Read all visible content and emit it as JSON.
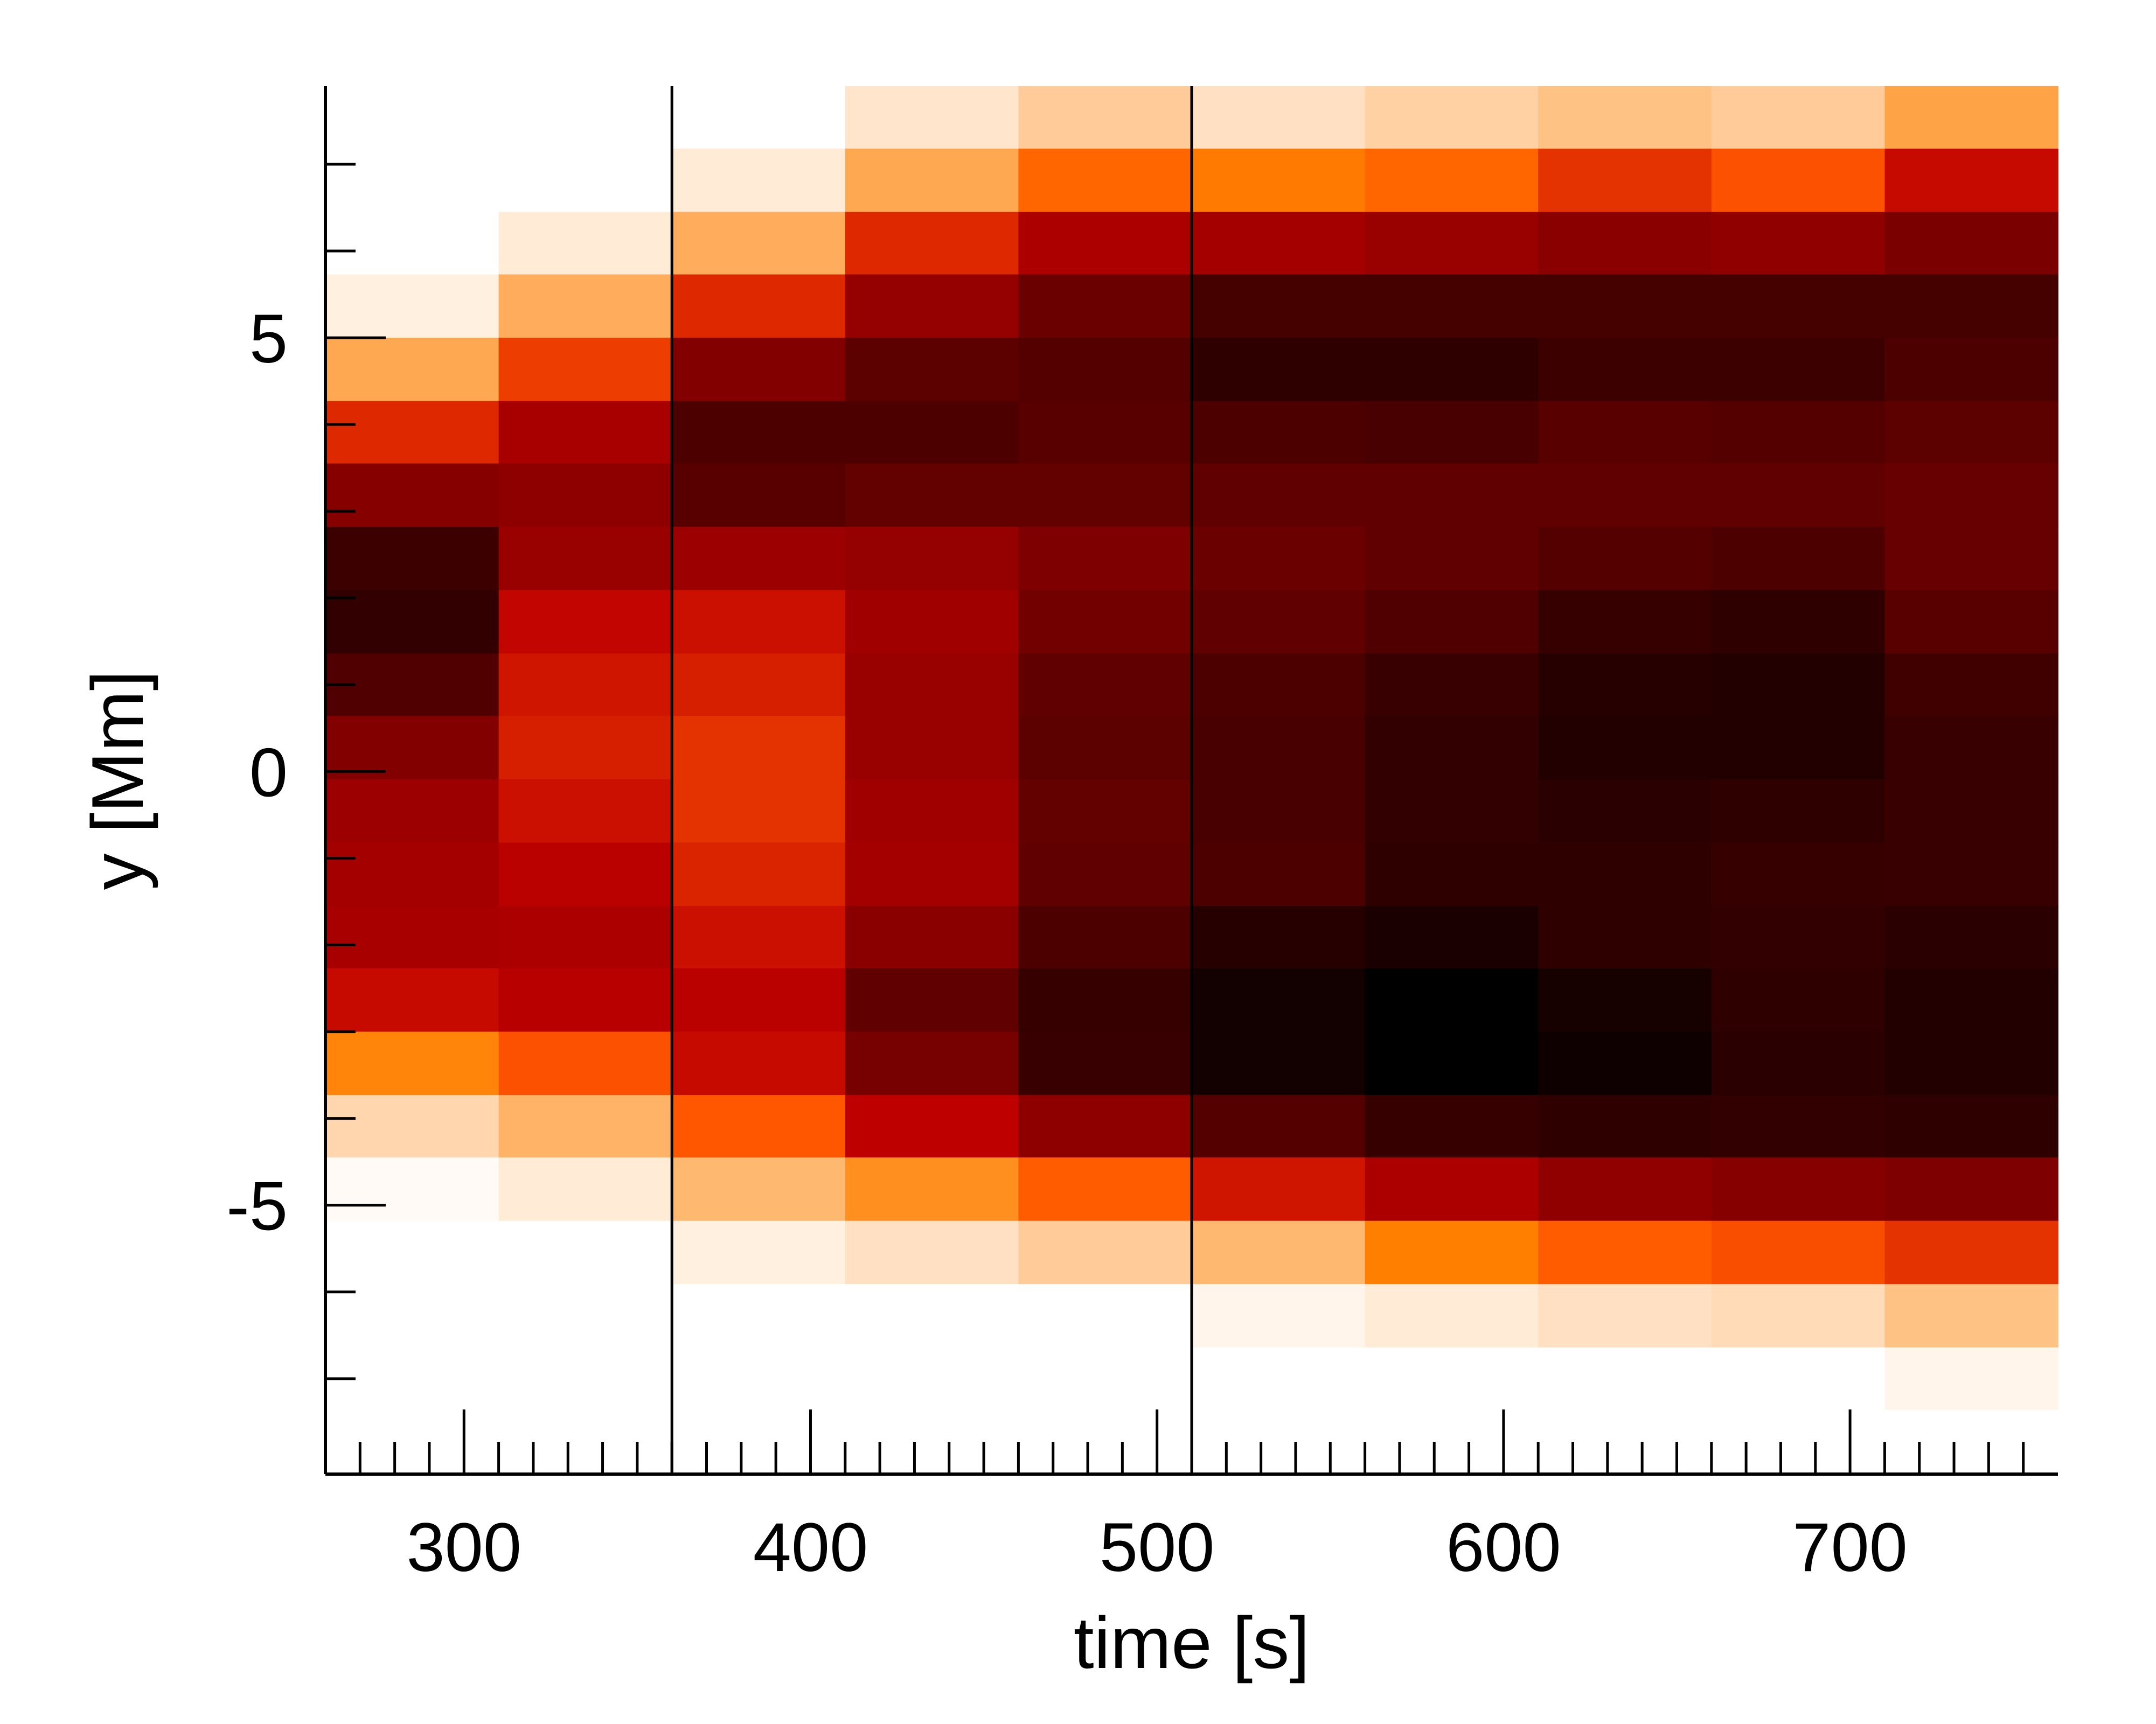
{
  "chart_data": {
    "type": "heatmap",
    "title": "",
    "xlabel": "time [s]",
    "ylabel": "y [Mm]",
    "xlim": [
      260,
      760
    ],
    "ylim": [
      -8.1,
      7.9
    ],
    "x_major_ticks": [
      300,
      400,
      500,
      600,
      700
    ],
    "x_tick_labels": [
      "300",
      "400",
      "500",
      "600",
      "700"
    ],
    "x_minor_step": 10,
    "y_major_ticks": [
      5,
      0,
      -5
    ],
    "y_tick_labels": [
      "5",
      "0",
      "-5"
    ],
    "y_minor_step": 1,
    "colormap": "gist_heat_r",
    "grid": false,
    "x_bins": [
      260,
      310,
      360,
      410,
      460,
      510,
      560,
      610,
      660,
      710,
      760
    ],
    "y_bins": [
      7.9,
      7.18,
      6.45,
      5.73,
      5.0,
      4.27,
      3.55,
      2.82,
      2.09,
      1.36,
      0.64,
      -0.09,
      -0.82,
      -1.55,
      -2.27,
      -3.0,
      -3.73,
      -4.45,
      -5.18,
      -5.91,
      -6.64,
      -7.36,
      -8.1
    ],
    "values": [
      [
        0.0,
        0.0,
        0.0,
        0.05,
        0.1,
        0.06,
        0.09,
        0.12,
        0.1,
        0.18
      ],
      [
        0.0,
        0.0,
        0.04,
        0.17,
        0.3,
        0.26,
        0.3,
        0.4,
        0.34,
        0.48
      ],
      [
        0.0,
        0.04,
        0.16,
        0.42,
        0.55,
        0.57,
        0.6,
        0.64,
        0.62,
        0.68
      ],
      [
        0.03,
        0.16,
        0.42,
        0.61,
        0.72,
        0.82,
        0.82,
        0.82,
        0.82,
        0.82
      ],
      [
        0.17,
        0.38,
        0.66,
        0.76,
        0.78,
        0.88,
        0.88,
        0.84,
        0.84,
        0.8
      ],
      [
        0.42,
        0.56,
        0.8,
        0.8,
        0.77,
        0.8,
        0.81,
        0.77,
        0.78,
        0.76
      ],
      [
        0.65,
        0.63,
        0.77,
        0.74,
        0.74,
        0.75,
        0.75,
        0.75,
        0.75,
        0.73
      ],
      [
        0.84,
        0.6,
        0.59,
        0.61,
        0.67,
        0.72,
        0.75,
        0.78,
        0.8,
        0.73
      ],
      [
        0.87,
        0.49,
        0.47,
        0.58,
        0.7,
        0.75,
        0.79,
        0.86,
        0.88,
        0.77
      ],
      [
        0.79,
        0.46,
        0.44,
        0.6,
        0.75,
        0.8,
        0.85,
        0.9,
        0.91,
        0.83
      ],
      [
        0.66,
        0.44,
        0.4,
        0.6,
        0.76,
        0.81,
        0.87,
        0.91,
        0.91,
        0.85
      ],
      [
        0.59,
        0.47,
        0.4,
        0.58,
        0.74,
        0.81,
        0.87,
        0.89,
        0.88,
        0.85
      ],
      [
        0.57,
        0.51,
        0.43,
        0.57,
        0.75,
        0.8,
        0.88,
        0.88,
        0.86,
        0.85
      ],
      [
        0.56,
        0.55,
        0.47,
        0.64,
        0.8,
        0.9,
        0.93,
        0.88,
        0.87,
        0.89
      ],
      [
        0.48,
        0.52,
        0.51,
        0.75,
        0.86,
        0.95,
        1.0,
        0.94,
        0.88,
        0.91
      ],
      [
        0.24,
        0.34,
        0.48,
        0.69,
        0.85,
        0.95,
        1.0,
        0.96,
        0.89,
        0.91
      ],
      [
        0.08,
        0.15,
        0.33,
        0.5,
        0.63,
        0.78,
        0.86,
        0.88,
        0.87,
        0.88
      ],
      [
        0.01,
        0.04,
        0.14,
        0.22,
        0.32,
        0.46,
        0.55,
        0.62,
        0.65,
        0.67
      ],
      [
        0.0,
        0.0,
        0.03,
        0.06,
        0.1,
        0.14,
        0.25,
        0.32,
        0.35,
        0.4
      ],
      [
        0.0,
        0.0,
        0.0,
        0.0,
        0.0,
        0.02,
        0.04,
        0.06,
        0.07,
        0.12
      ],
      [
        0.0,
        0.0,
        0.0,
        0.0,
        0.0,
        0.0,
        0.0,
        0.0,
        0.0,
        0.02
      ],
      [
        0.0,
        0.0,
        0.0,
        0.0,
        0.0,
        0.0,
        0.0,
        0.0,
        0.0,
        0.0
      ]
    ],
    "vertical_lines": [
      360,
      510
    ]
  }
}
